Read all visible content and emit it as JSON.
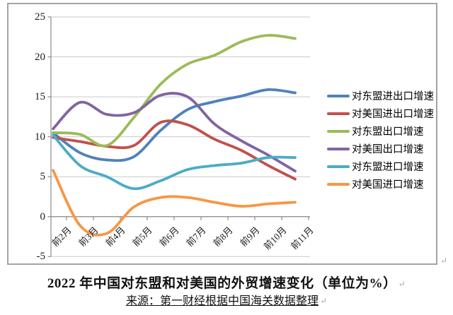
{
  "chart": {
    "title": "2022 年中国对东盟和对美国的外贸增速变化（单位为%）",
    "source": "来源：第一财经根据中国海关数据整理",
    "paragraph_mark": "↵"
  },
  "chart_data": {
    "type": "line",
    "smooth": true,
    "categories": [
      "前2月",
      "前3月",
      "前4月",
      "前5月",
      "前6月",
      "前7月",
      "前8月",
      "前9月",
      "前10月",
      "前11月"
    ],
    "series": [
      {
        "name": "对东盟进出口增速",
        "color": "#4F81BD",
        "values": [
          10.5,
          8.0,
          7.1,
          7.5,
          10.8,
          13.4,
          14.4,
          15.1,
          15.9,
          15.5
        ]
      },
      {
        "name": "对美国进出口增速",
        "color": "#C0504D",
        "values": [
          9.9,
          9.4,
          8.8,
          8.9,
          11.8,
          11.5,
          9.7,
          8.3,
          6.4,
          4.7
        ]
      },
      {
        "name": "对东盟出口增速",
        "color": "#9BBB59",
        "values": [
          10.5,
          10.3,
          8.9,
          12.4,
          16.6,
          19.1,
          20.2,
          21.9,
          22.7,
          22.3
        ]
      },
      {
        "name": "对美国出口增速",
        "color": "#8064A2",
        "values": [
          11.0,
          14.3,
          12.8,
          13.0,
          15.2,
          15.0,
          11.6,
          9.5,
          7.7,
          5.7
        ]
      },
      {
        "name": "对东盟进口增速",
        "color": "#4BACC6",
        "values": [
          10.2,
          6.4,
          5.0,
          3.5,
          4.5,
          5.9,
          6.4,
          6.7,
          7.4,
          7.4
        ]
      },
      {
        "name": "对美国进口增速",
        "color": "#F79646",
        "values": [
          5.8,
          -1.1,
          -2.1,
          1.2,
          2.4,
          2.4,
          1.8,
          1.3,
          1.6,
          1.8
        ]
      }
    ],
    "ylabel": "",
    "xlabel": "",
    "ylim": [
      -5,
      25
    ],
    "y_tick_step": 5,
    "y_ticks": [
      "25",
      "20",
      "15",
      "10",
      "5",
      "0",
      "-5"
    ],
    "grid": true,
    "legend_position": "right",
    "axis_cross_value": 0
  }
}
